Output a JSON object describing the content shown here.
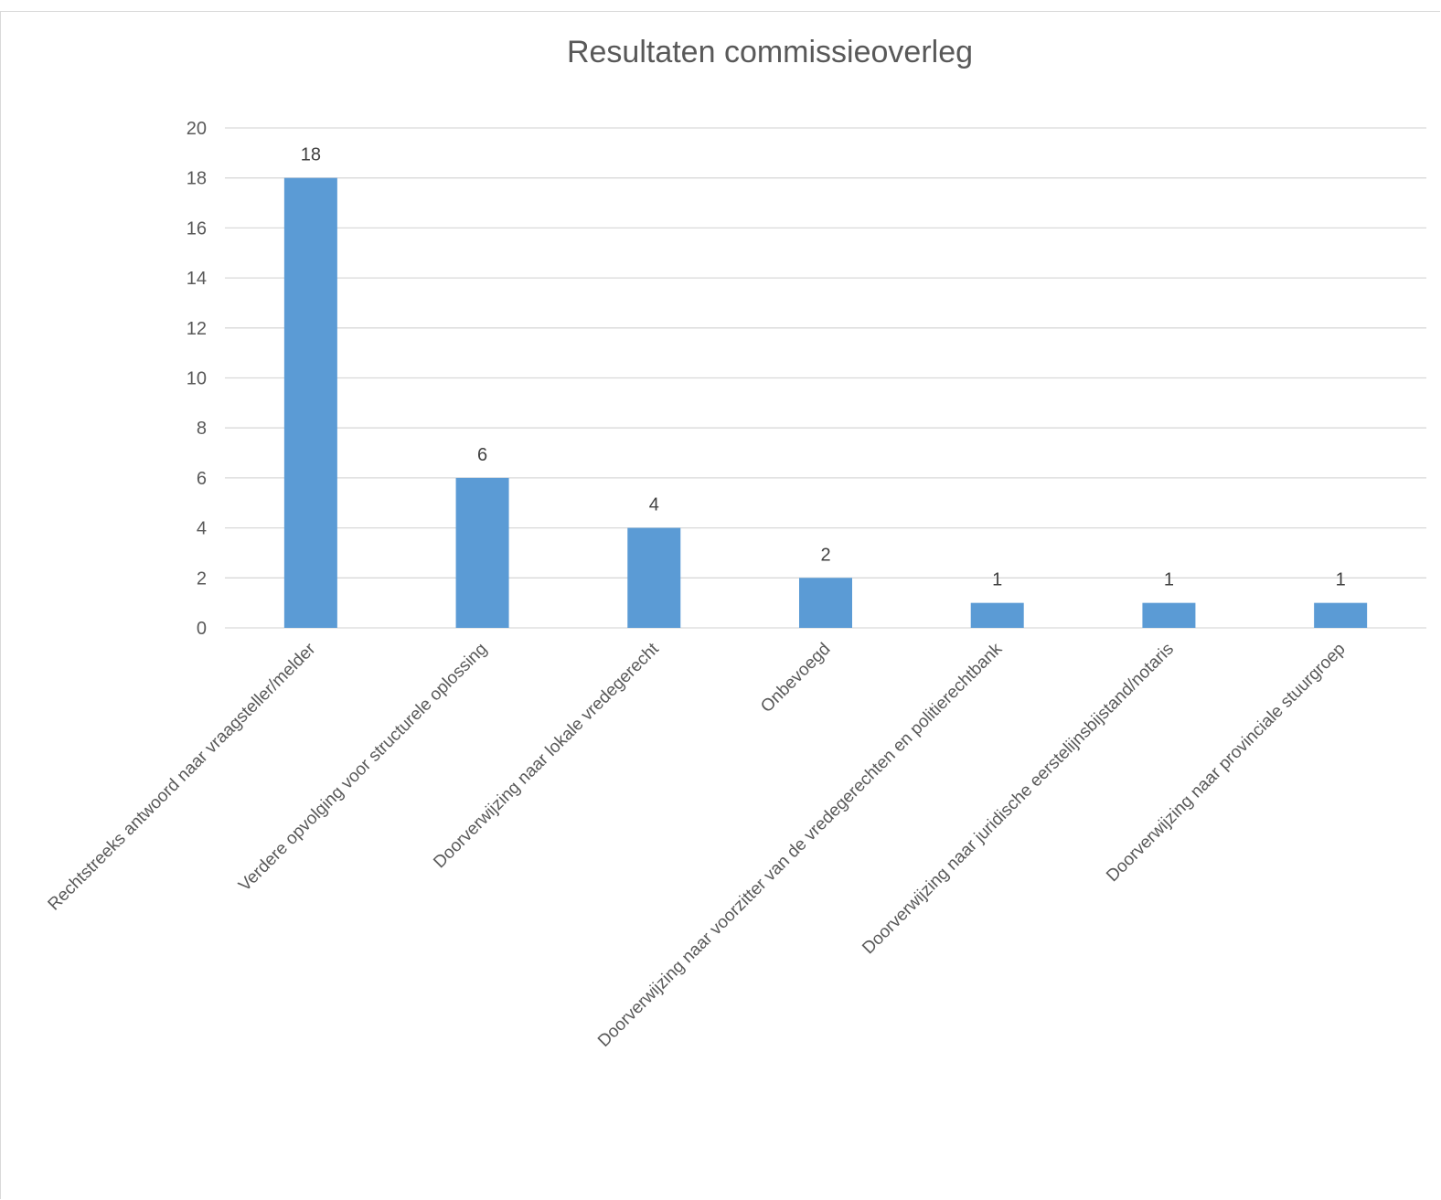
{
  "chart_data": {
    "type": "bar",
    "title": "Resultaten commissieoverleg",
    "xlabel": "",
    "ylabel": "",
    "ylim": [
      0,
      20
    ],
    "yticks": [
      0,
      2,
      4,
      6,
      8,
      10,
      12,
      14,
      16,
      18,
      20
    ],
    "grid": true,
    "legend": "none",
    "categories": [
      "Rechtstreeks antwoord naar vraagsteller/melder",
      "Verdere opvolging voor structurele oplossing",
      "Doorverwijzing naar lokale vredegerecht",
      "Onbevoegd",
      "Doorverwijzing naar voorzitter van de vredegerechten en politierechtbank",
      "Doorverwijzing naar juridische eerstelijnsbijstand/notaris",
      "Doorverwijzing naar provinciale stuurgroep"
    ],
    "values": [
      18,
      6,
      4,
      2,
      1,
      1,
      1
    ],
    "bar_color": "#5b9bd5",
    "grid_color": "#d9d9d9"
  }
}
